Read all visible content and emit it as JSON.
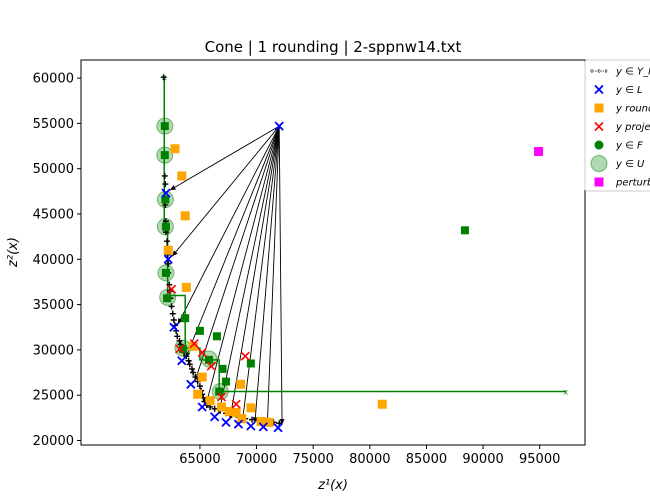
{
  "chart_data": {
    "type": "scatter",
    "title": "Cone | 1 rounding | 2-sppnw14.txt",
    "xlabel": "z¹(x)",
    "ylabel": "z²(x)",
    "xlim": [
      54500,
      99000
    ],
    "ylim": [
      19500,
      62000
    ],
    "xticks": [
      65000,
      70000,
      75000,
      80000,
      85000,
      90000,
      95000
    ],
    "yticks": [
      20000,
      25000,
      30000,
      35000,
      40000,
      45000,
      50000,
      55000,
      60000
    ],
    "xtick_labels": [
      "65000",
      "70000",
      "75000",
      "80000",
      "85000",
      "90000",
      "95000"
    ],
    "ytick_labels": [
      "20000",
      "25000",
      "30000",
      "35000",
      "40000",
      "45000",
      "50000",
      "55000",
      "60000"
    ],
    "grid": false,
    "legend_position": "right",
    "colors": {
      "YN": "#000000",
      "L": "#0000ff",
      "rounded": "#ffa500",
      "projected": "#ff0000",
      "F": "#008000",
      "U": "#008000",
      "perturbed": "#ff00ff"
    },
    "legend": [
      {
        "key": "YN",
        "label": "y ∈ Y_N"
      },
      {
        "key": "L",
        "label": "y ∈ L"
      },
      {
        "key": "rounded",
        "label": "y rounded"
      },
      {
        "key": "projected",
        "label": "y projected"
      },
      {
        "key": "F",
        "label": "y ∈ F"
      },
      {
        "key": "U",
        "label": "y ∈ U"
      },
      {
        "key": "perturbed",
        "label": "perturbed"
      }
    ],
    "series": {
      "YN": [
        [
          61800,
          60100
        ],
        [
          61900,
          49200
        ],
        [
          61950,
          48300
        ],
        [
          61950,
          46000
        ],
        [
          62000,
          44200
        ],
        [
          62000,
          43000
        ],
        [
          62100,
          42000
        ],
        [
          62100,
          41300
        ],
        [
          62150,
          40500
        ],
        [
          62200,
          39500
        ],
        [
          62200,
          38500
        ],
        [
          62300,
          37200
        ],
        [
          62350,
          36500
        ],
        [
          62400,
          35700
        ],
        [
          62500,
          34800
        ],
        [
          62600,
          34000
        ],
        [
          62700,
          33300
        ],
        [
          62800,
          32700
        ],
        [
          62900,
          32100
        ],
        [
          63000,
          31500
        ],
        [
          63200,
          31000
        ],
        [
          63300,
          30600
        ],
        [
          63500,
          30100
        ],
        [
          63600,
          29700
        ],
        [
          63800,
          29300
        ],
        [
          64000,
          28800
        ],
        [
          64100,
          28400
        ],
        [
          64300,
          27900
        ],
        [
          64400,
          27500
        ],
        [
          64600,
          27000
        ],
        [
          64800,
          26500
        ],
        [
          65000,
          26000
        ],
        [
          65100,
          25500
        ],
        [
          65200,
          25100
        ],
        [
          65300,
          24700
        ],
        [
          65400,
          24300
        ],
        [
          65600,
          23900
        ],
        [
          65900,
          23700
        ],
        [
          66300,
          23500
        ],
        [
          66800,
          23300
        ],
        [
          67300,
          23000
        ],
        [
          67800,
          22800
        ],
        [
          68400,
          22600
        ],
        [
          69000,
          22400
        ],
        [
          69600,
          22300
        ],
        [
          70200,
          22200
        ],
        [
          70800,
          22100
        ],
        [
          71500,
          22000
        ],
        [
          72000,
          21900
        ]
      ],
      "L": [
        [
          62000,
          47300
        ],
        [
          62200,
          40000
        ],
        [
          62700,
          32500
        ],
        [
          63400,
          28800
        ],
        [
          64200,
          26200
        ],
        [
          65200,
          23700
        ],
        [
          66300,
          22600
        ],
        [
          67300,
          22000
        ],
        [
          68400,
          21800
        ],
        [
          69500,
          21600
        ],
        [
          70600,
          21500
        ],
        [
          71900,
          21400
        ],
        [
          72000,
          54700
        ]
      ],
      "rounded": [
        [
          62800,
          52200
        ],
        [
          63400,
          49200
        ],
        [
          63700,
          44800
        ],
        [
          62200,
          41000
        ],
        [
          63800,
          36900
        ],
        [
          64400,
          30400
        ],
        [
          65200,
          27000
        ],
        [
          64800,
          25100
        ],
        [
          65900,
          24400
        ],
        [
          66900,
          23700
        ],
        [
          67600,
          23200
        ],
        [
          68200,
          23100
        ],
        [
          68700,
          22400
        ],
        [
          69500,
          23600
        ],
        [
          70400,
          22100
        ],
        [
          71100,
          22000
        ],
        [
          81100,
          24000
        ],
        [
          68600,
          26200
        ]
      ],
      "projected": [
        [
          62500,
          36700
        ],
        [
          63200,
          30100
        ],
        [
          64500,
          30700
        ],
        [
          65200,
          29700
        ],
        [
          66000,
          28200
        ],
        [
          66900,
          24800
        ],
        [
          68200,
          24000
        ],
        [
          69000,
          29300
        ]
      ],
      "F": [
        [
          61900,
          54700
        ],
        [
          61900,
          51500
        ],
        [
          61950,
          46600
        ],
        [
          62000,
          43600
        ],
        [
          62000,
          38500
        ],
        [
          62100,
          35700
        ],
        [
          63700,
          33500
        ],
        [
          63500,
          30100
        ],
        [
          65000,
          32100
        ],
        [
          65800,
          28900
        ],
        [
          66500,
          31500
        ],
        [
          67000,
          27900
        ],
        [
          67300,
          26500
        ],
        [
          66700,
          25400
        ],
        [
          69500,
          28500
        ],
        [
          88400,
          43200
        ]
      ],
      "U": [
        [
          61900,
          54700
        ],
        [
          61900,
          51500
        ],
        [
          61950,
          46600
        ],
        [
          61950,
          43600
        ],
        [
          62000,
          38500
        ],
        [
          62150,
          35800
        ],
        [
          63500,
          30200
        ],
        [
          65800,
          29000
        ],
        [
          66800,
          25400
        ]
      ],
      "perturbed": [
        [
          94900,
          51900
        ]
      ]
    },
    "staircase": [
      [
        61850,
        60100
      ],
      [
        61850,
        54700
      ],
      [
        61850,
        51500
      ],
      [
        61850,
        43600
      ],
      [
        62150,
        43600
      ],
      [
        62150,
        36000
      ],
      [
        63700,
        36000
      ],
      [
        63700,
        31500
      ],
      [
        63700,
        30200
      ],
      [
        65000,
        30200
      ],
      [
        65000,
        28900
      ],
      [
        66700,
        28900
      ],
      [
        66700,
        25400
      ],
      [
        97300,
        25400
      ]
    ],
    "cone_apex": [
      72000,
      54700
    ]
  }
}
